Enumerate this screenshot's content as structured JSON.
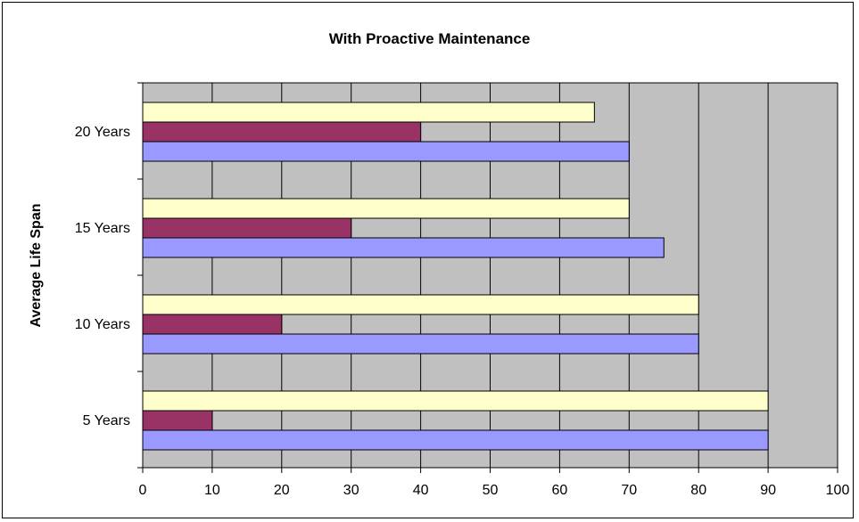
{
  "chart_data": {
    "type": "bar",
    "orientation": "horizontal",
    "title": "With Proactive Maintenance",
    "ylabel": "Average Life Span",
    "xlabel": "",
    "categories": [
      "5 Years",
      "10 Years",
      "15 Years",
      "20 Years"
    ],
    "xlim": [
      0,
      100
    ],
    "x_ticks": [
      "0",
      "10",
      "20",
      "30",
      "40",
      "50",
      "60",
      "70",
      "80",
      "90",
      "100"
    ],
    "grid": true,
    "legend": "none",
    "plot_background": "#c0c0c0",
    "series": [
      {
        "color": "#9999ff",
        "values": [
          90,
          80,
          75,
          70
        ]
      },
      {
        "color": "#993366",
        "values": [
          10,
          20,
          30,
          40
        ]
      },
      {
        "color": "#ffffcc",
        "values": [
          90,
          80,
          70,
          65
        ]
      }
    ]
  }
}
